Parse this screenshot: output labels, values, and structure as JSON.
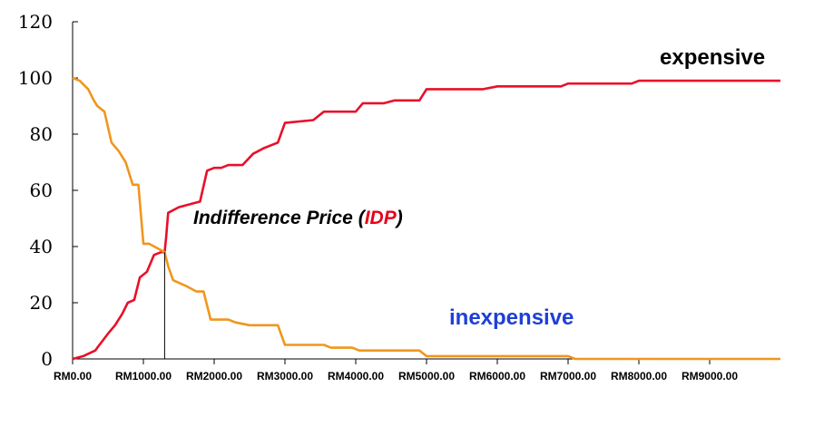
{
  "chart_data": {
    "type": "line",
    "ylim": [
      0,
      120
    ],
    "yticks": [
      "0",
      "20",
      "40",
      "60",
      "80",
      "100",
      "120"
    ],
    "xlim": [
      0,
      10000
    ],
    "xticks": [
      {
        "value": 0,
        "label": "RM0.00"
      },
      {
        "value": 1000,
        "label": "RM1000.00"
      },
      {
        "value": 2000,
        "label": "RM2000.00"
      },
      {
        "value": 3000,
        "label": "RM3000.00"
      },
      {
        "value": 4000,
        "label": "RM4000.00"
      },
      {
        "value": 5000,
        "label": "RM5000.00"
      },
      {
        "value": 6000,
        "label": "RM6000.00"
      },
      {
        "value": 7000,
        "label": "RM7000.00"
      },
      {
        "value": 8000,
        "label": "RM8000.00"
      },
      {
        "value": 9000,
        "label": "RM9000.00"
      }
    ],
    "series": [
      {
        "color": "#e8102a",
        "points": [
          [
            0,
            0
          ],
          [
            150,
            1
          ],
          [
            320,
            3
          ],
          [
            380,
            5
          ],
          [
            500,
            9
          ],
          [
            600,
            12
          ],
          [
            700,
            16
          ],
          [
            780,
            20
          ],
          [
            870,
            21
          ],
          [
            950,
            29
          ],
          [
            1050,
            31
          ],
          [
            1150,
            37
          ],
          [
            1250,
            38
          ],
          [
            1300,
            38
          ],
          [
            1320,
            43
          ],
          [
            1350,
            52
          ],
          [
            1500,
            54
          ],
          [
            1650,
            55
          ],
          [
            1800,
            56
          ],
          [
            1900,
            67
          ],
          [
            2000,
            68
          ],
          [
            2100,
            68
          ],
          [
            2200,
            69
          ],
          [
            2400,
            69
          ],
          [
            2550,
            73
          ],
          [
            2700,
            75
          ],
          [
            2900,
            77
          ],
          [
            3000,
            84
          ],
          [
            3400,
            85
          ],
          [
            3550,
            88
          ],
          [
            4000,
            88
          ],
          [
            4100,
            91
          ],
          [
            4400,
            91
          ],
          [
            4550,
            92
          ],
          [
            4900,
            92
          ],
          [
            5000,
            96
          ],
          [
            5800,
            96
          ],
          [
            6000,
            97
          ],
          [
            6900,
            97
          ],
          [
            7000,
            98
          ],
          [
            7900,
            98
          ],
          [
            8000,
            99
          ],
          [
            10000,
            99
          ]
        ]
      },
      {
        "color": "#f0961e",
        "points": [
          [
            0,
            100
          ],
          [
            100,
            99
          ],
          [
            220,
            96
          ],
          [
            300,
            92
          ],
          [
            350,
            90
          ],
          [
            450,
            88
          ],
          [
            550,
            77
          ],
          [
            650,
            74
          ],
          [
            750,
            70
          ],
          [
            850,
            62
          ],
          [
            930,
            62
          ],
          [
            1000,
            41
          ],
          [
            1080,
            41
          ],
          [
            1300,
            38
          ],
          [
            1350,
            33
          ],
          [
            1420,
            28
          ],
          [
            1600,
            26
          ],
          [
            1750,
            24
          ],
          [
            1850,
            24
          ],
          [
            1950,
            14
          ],
          [
            2050,
            14
          ],
          [
            2200,
            14
          ],
          [
            2300,
            13
          ],
          [
            2500,
            12
          ],
          [
            2600,
            12
          ],
          [
            2900,
            12
          ],
          [
            3000,
            5
          ],
          [
            3100,
            5
          ],
          [
            3550,
            5
          ],
          [
            3650,
            4
          ],
          [
            3950,
            4
          ],
          [
            4050,
            3
          ],
          [
            4900,
            3
          ],
          [
            5000,
            1
          ],
          [
            6000,
            1
          ],
          [
            7000,
            1
          ],
          [
            7100,
            0
          ],
          [
            10000,
            0
          ]
        ]
      }
    ],
    "markers": [
      {
        "x": 1300,
        "y": 38
      }
    ],
    "annotations": {
      "expensive": "expensive",
      "inexpensive": "inexpensive",
      "idp_prefix": "Indifference Price (",
      "idp_highlight": "IDP",
      "idp_suffix": ")"
    },
    "grid": false,
    "legend": "none"
  }
}
